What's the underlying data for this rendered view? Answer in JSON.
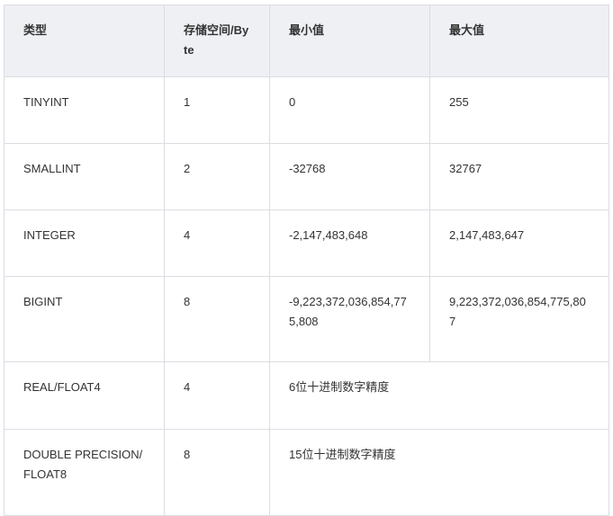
{
  "table": {
    "headers": [
      "类型",
      "存储空间/Byte",
      "最小值",
      "最大值"
    ],
    "rows": [
      {
        "type": "TINYINT",
        "size": "1",
        "min": "0",
        "max": "255"
      },
      {
        "type": "SMALLINT",
        "size": "2",
        "min": "-32768",
        "max": "32767"
      },
      {
        "type": "INTEGER",
        "size": "4",
        "min": "-2,147,483,648",
        "max": "2,147,483,647"
      },
      {
        "type": "BIGINT",
        "size": "8",
        "min": "-9,223,372,036,854,775,808",
        "max": "9,223,372,036,854,775,807"
      },
      {
        "type": "REAL/FLOAT4",
        "size": "4",
        "range": "6位十进制数字精度"
      },
      {
        "type": "DOUBLE PRECISION/FLOAT8",
        "size": "8",
        "range": "15位十进制数字精度"
      }
    ]
  },
  "colors": {
    "header_bg": "#eff0f4",
    "border": "#dcdde3",
    "text": "#333333"
  }
}
